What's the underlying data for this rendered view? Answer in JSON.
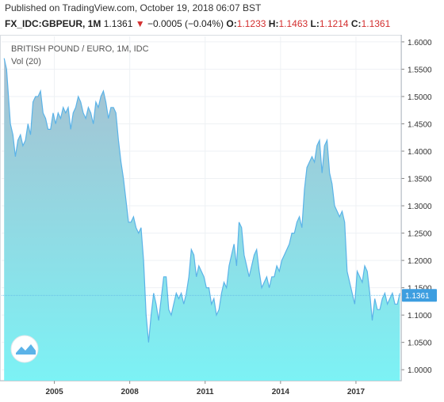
{
  "header": {
    "published": "Published on TradingView.com, October 19, 2018 06:07 BST",
    "symbol": "FX_IDC:GBPEUR, 1M",
    "last": "1.1361",
    "change_arrow": "▼",
    "change": "−0.0005 (−0.04%)",
    "o_label": "O:",
    "o_value": "1.1233",
    "h_label": "H:",
    "h_value": "1.1463",
    "l_label": "L:",
    "l_value": "1.1214",
    "c_label": "C:",
    "c_value": "1.1361"
  },
  "chart_data": {
    "type": "area",
    "title": "BRITISH POUND / EURO, 1M, IDC",
    "subtitle": "Vol (20)",
    "ylim": [
      0.98,
      1.61
    ],
    "xlim": [
      2002.9,
      2018.8
    ],
    "y_ticks": [
      "1.6000",
      "1.5500",
      "1.5000",
      "1.4500",
      "1.4000",
      "1.3500",
      "1.3000",
      "1.2500",
      "1.2000",
      "1.1500",
      "1.1000",
      "1.0500",
      "1.0000"
    ],
    "x_ticks": [
      "2005",
      "2008",
      "2011",
      "2014",
      "2017"
    ],
    "last_value_label": "1.1361",
    "colors": {
      "line": "#5bb3e8",
      "fill_top": "#a8bfd0",
      "fill_bottom": "#7cf2f5",
      "price_tag": "#3d9ee0",
      "grid": "#eef1f4"
    },
    "x": [
      2003.0,
      2003.1,
      2003.25,
      2003.35,
      2003.45,
      2003.55,
      2003.65,
      2003.75,
      2003.85,
      2003.95,
      2004.05,
      2004.15,
      2004.25,
      2004.35,
      2004.45,
      2004.55,
      2004.65,
      2004.75,
      2004.85,
      2004.95,
      2005.05,
      2005.15,
      2005.25,
      2005.35,
      2005.45,
      2005.55,
      2005.65,
      2005.75,
      2005.85,
      2005.95,
      2006.05,
      2006.15,
      2006.25,
      2006.35,
      2006.45,
      2006.55,
      2006.65,
      2006.75,
      2006.85,
      2006.95,
      2007.05,
      2007.15,
      2007.25,
      2007.35,
      2007.45,
      2007.55,
      2007.65,
      2007.75,
      2007.85,
      2007.95,
      2008.05,
      2008.15,
      2008.25,
      2008.35,
      2008.45,
      2008.55,
      2008.65,
      2008.75,
      2008.85,
      2008.95,
      2009.05,
      2009.15,
      2009.25,
      2009.35,
      2009.45,
      2009.55,
      2009.65,
      2009.75,
      2009.85,
      2009.95,
      2010.05,
      2010.15,
      2010.25,
      2010.35,
      2010.45,
      2010.55,
      2010.65,
      2010.75,
      2010.85,
      2010.95,
      2011.05,
      2011.15,
      2011.25,
      2011.35,
      2011.45,
      2011.55,
      2011.65,
      2011.75,
      2011.85,
      2011.95,
      2012.05,
      2012.15,
      2012.25,
      2012.35,
      2012.45,
      2012.55,
      2012.65,
      2012.75,
      2012.85,
      2012.95,
      2013.05,
      2013.15,
      2013.25,
      2013.35,
      2013.45,
      2013.55,
      2013.65,
      2013.75,
      2013.85,
      2013.95,
      2014.05,
      2014.15,
      2014.25,
      2014.35,
      2014.45,
      2014.55,
      2014.65,
      2014.75,
      2014.85,
      2014.95,
      2015.05,
      2015.15,
      2015.25,
      2015.35,
      2015.45,
      2015.55,
      2015.65,
      2015.75,
      2015.85,
      2015.95,
      2016.05,
      2016.15,
      2016.25,
      2016.35,
      2016.45,
      2016.55,
      2016.65,
      2016.75,
      2016.85,
      2016.95,
      2017.05,
      2017.15,
      2017.25,
      2017.35,
      2017.45,
      2017.55,
      2017.65,
      2017.75,
      2017.85,
      2017.95,
      2018.05,
      2018.15,
      2018.25,
      2018.35,
      2018.45,
      2018.55,
      2018.65,
      2018.75
    ],
    "values": [
      1.57,
      1.55,
      1.45,
      1.43,
      1.39,
      1.42,
      1.43,
      1.41,
      1.42,
      1.45,
      1.43,
      1.49,
      1.5,
      1.5,
      1.51,
      1.47,
      1.46,
      1.44,
      1.44,
      1.47,
      1.45,
      1.47,
      1.46,
      1.48,
      1.47,
      1.48,
      1.44,
      1.47,
      1.48,
      1.5,
      1.49,
      1.47,
      1.46,
      1.48,
      1.47,
      1.45,
      1.49,
      1.48,
      1.5,
      1.51,
      1.49,
      1.46,
      1.48,
      1.48,
      1.47,
      1.42,
      1.38,
      1.35,
      1.31,
      1.27,
      1.27,
      1.28,
      1.26,
      1.25,
      1.26,
      1.2,
      1.1,
      1.05,
      1.1,
      1.14,
      1.12,
      1.09,
      1.13,
      1.17,
      1.17,
      1.11,
      1.1,
      1.12,
      1.14,
      1.13,
      1.14,
      1.12,
      1.14,
      1.17,
      1.22,
      1.21,
      1.17,
      1.19,
      1.18,
      1.17,
      1.15,
      1.15,
      1.12,
      1.13,
      1.1,
      1.11,
      1.14,
      1.16,
      1.15,
      1.19,
      1.21,
      1.23,
      1.19,
      1.27,
      1.26,
      1.21,
      1.19,
      1.17,
      1.19,
      1.21,
      1.22,
      1.18,
      1.15,
      1.16,
      1.17,
      1.15,
      1.17,
      1.17,
      1.19,
      1.18,
      1.2,
      1.21,
      1.22,
      1.23,
      1.25,
      1.25,
      1.27,
      1.28,
      1.26,
      1.33,
      1.37,
      1.38,
      1.39,
      1.38,
      1.41,
      1.42,
      1.36,
      1.41,
      1.42,
      1.36,
      1.34,
      1.3,
      1.29,
      1.28,
      1.29,
      1.27,
      1.18,
      1.16,
      1.14,
      1.12,
      1.18,
      1.17,
      1.16,
      1.19,
      1.18,
      1.14,
      1.09,
      1.13,
      1.11,
      1.11,
      1.13,
      1.14,
      1.12,
      1.13,
      1.14,
      1.12,
      1.12,
      1.14
    ]
  }
}
